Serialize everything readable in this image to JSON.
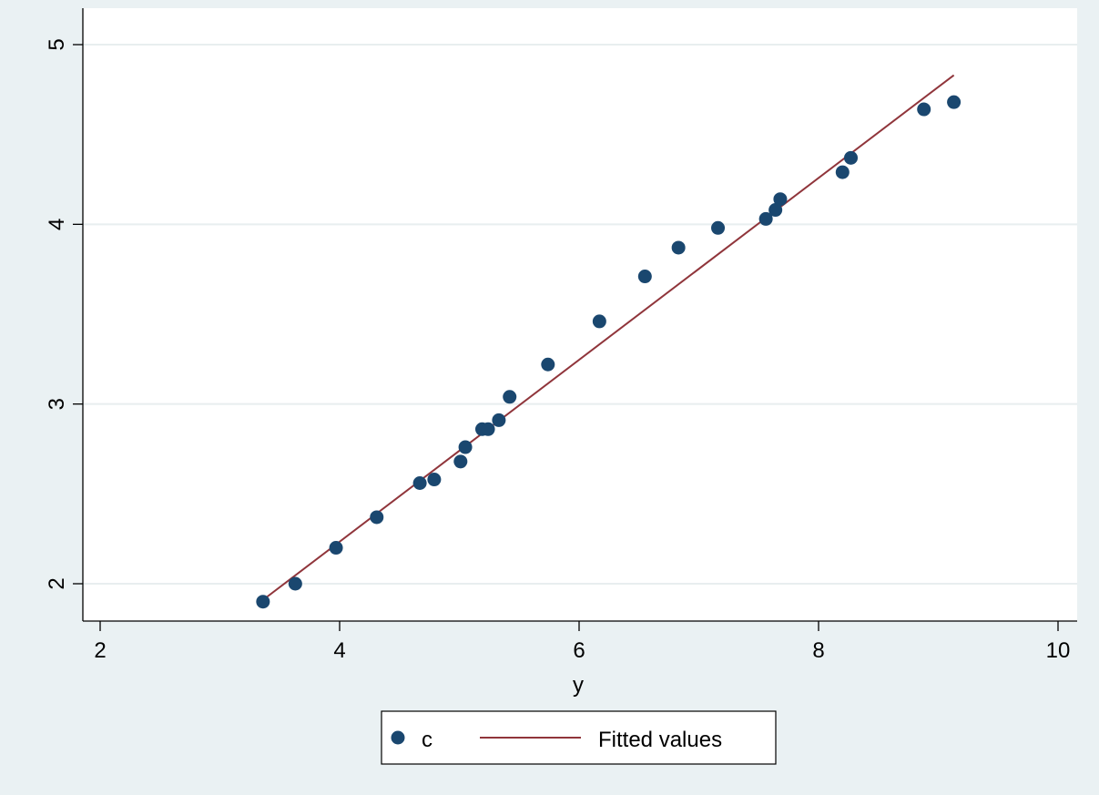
{
  "chart_data": {
    "type": "scatter",
    "title": "",
    "xlabel": "y",
    "ylabel": "",
    "xlim": [
      2,
      10
    ],
    "ylim": [
      1.8,
      5.1
    ],
    "x_ticks": [
      2,
      4,
      6,
      8,
      10
    ],
    "y_ticks": [
      2,
      3,
      4,
      5
    ],
    "x_tick_labels": [
      "2",
      "4",
      "6",
      "8",
      "10"
    ],
    "y_tick_labels": [
      "2",
      "3",
      "4",
      "5"
    ],
    "grid": "horizontal",
    "legend_position": "bottom",
    "series": [
      {
        "name": "c",
        "type": "scatter",
        "color": "#1a476f",
        "x": [
          3.36,
          3.63,
          3.97,
          4.31,
          4.67,
          4.79,
          5.01,
          5.05,
          5.19,
          5.24,
          5.33,
          5.42,
          5.74,
          6.17,
          6.55,
          6.83,
          7.16,
          7.56,
          7.64,
          7.68,
          8.2,
          8.27,
          8.88,
          9.13
        ],
        "y": [
          1.9,
          2.0,
          2.2,
          2.37,
          2.56,
          2.58,
          2.68,
          2.76,
          2.86,
          2.86,
          2.91,
          3.04,
          3.22,
          3.46,
          3.71,
          3.87,
          3.98,
          4.03,
          4.08,
          4.14,
          4.29,
          4.37,
          4.64,
          4.68
        ]
      },
      {
        "name": "Fitted values",
        "type": "line",
        "color": "#90353b",
        "x": [
          3.36,
          9.13
        ],
        "y": [
          1.91,
          4.83
        ]
      }
    ]
  }
}
